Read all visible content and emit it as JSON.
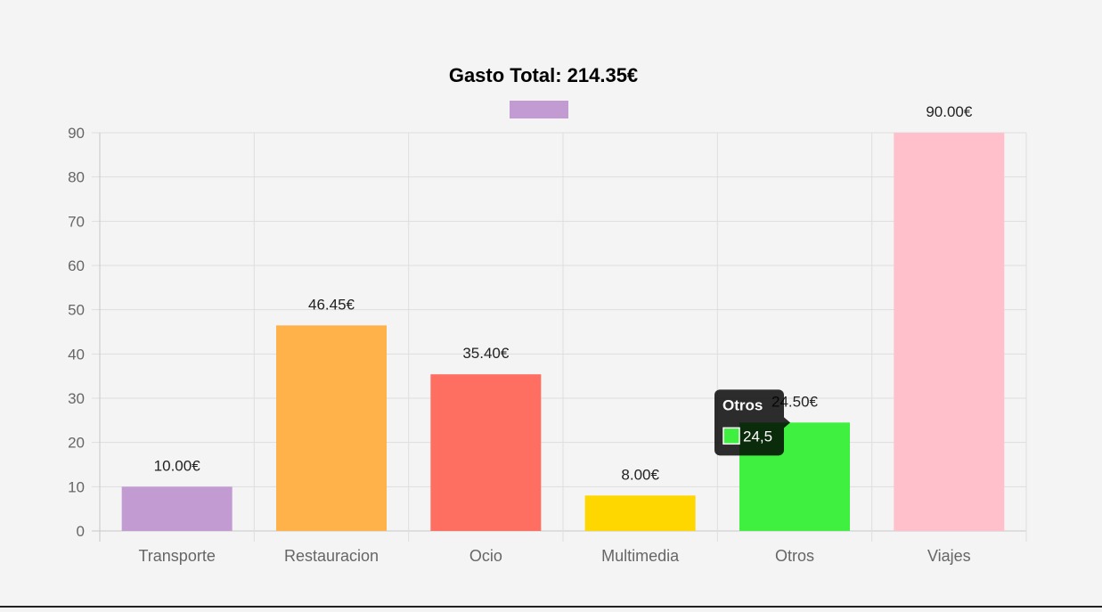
{
  "chart_data": {
    "type": "bar",
    "title": "Gasto Total: 214.35€",
    "categories": [
      "Transporte",
      "Restauracion",
      "Ocio",
      "Multimedia",
      "Otros",
      "Viajes"
    ],
    "values": [
      10,
      46.45,
      35.4,
      8,
      24.5,
      90
    ],
    "data_labels": [
      "10.00€",
      "46.45€",
      "35.40€",
      "8.00€",
      "24.50€",
      "90.00€"
    ],
    "colors": [
      "#c39bd3",
      "#ffb14a",
      "#ff6f61",
      "#ffd700",
      "#40f040",
      "#ffc0cb"
    ],
    "ylim": [
      0,
      90
    ],
    "yticks": [
      "0",
      "10",
      "20",
      "30",
      "40",
      "50",
      "60",
      "70",
      "80",
      "90"
    ],
    "grid": true,
    "legend": {
      "position": "top",
      "color": "#c39bd3"
    },
    "tooltip": {
      "category": "Otros",
      "value": "24,5",
      "swatch_color": "#40f040"
    }
  }
}
